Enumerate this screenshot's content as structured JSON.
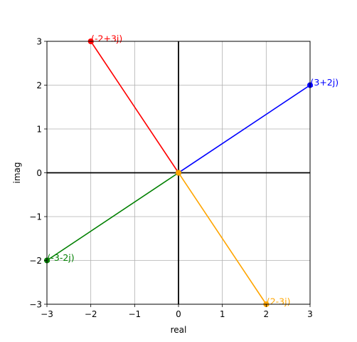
{
  "chart_data": {
    "type": "line",
    "xlabel": "real",
    "ylabel": "imag",
    "xlim": [
      -3,
      3
    ],
    "ylim": [
      -3,
      3
    ],
    "xticks": [
      -3,
      -2,
      -1,
      0,
      1,
      2,
      3
    ],
    "yticks": [
      -3,
      -2,
      -1,
      0,
      1,
      2,
      3
    ],
    "grid": true,
    "origin": [
      0,
      0
    ],
    "series": [
      {
        "label": "(3+2j)",
        "color": "#0000ff",
        "x": 3,
        "y": 2
      },
      {
        "label": "(-2+3j)",
        "color": "#ff0000",
        "x": -2,
        "y": 3
      },
      {
        "label": "(-3-2j)",
        "color": "#008000",
        "x": -3,
        "y": -2
      },
      {
        "label": "(2-3j)",
        "color": "#ffa500",
        "x": 2,
        "y": -3
      }
    ]
  }
}
